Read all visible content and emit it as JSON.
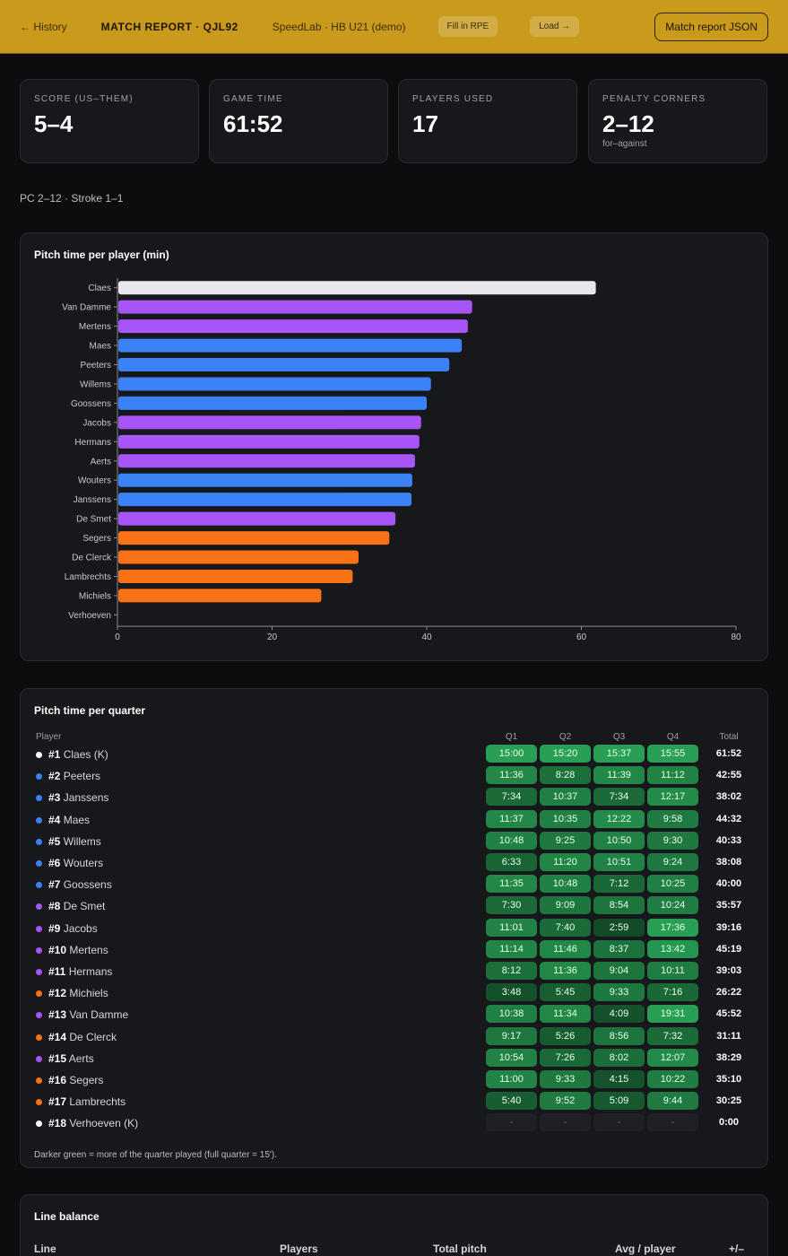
{
  "header": {
    "back_label": "← History",
    "title": "MATCH REPORT · QJL92",
    "team": "SpeedLab · HB U21 (demo)",
    "fill_rpe_label": "Fill in RPE",
    "load_label": "Load →",
    "json_label": "Match report JSON"
  },
  "stats": [
    {
      "label": "SCORE (US–THEM)",
      "value": "5–4",
      "sub": ""
    },
    {
      "label": "GAME TIME",
      "value": "61:52",
      "sub": ""
    },
    {
      "label": "PLAYERS USED",
      "value": "17",
      "sub": ""
    },
    {
      "label": "PENALTY CORNERS",
      "value": "2–12",
      "sub": "for–against"
    }
  ],
  "pc_line": "PC 2–12 · Stroke 1–1",
  "colors": {
    "keeper": "#e8e8ec",
    "midfield": "#a855f7",
    "defense": "#3b82f6",
    "attack": "#f97316"
  },
  "pitch_chart": {
    "title": "Pitch time per player (min)"
  },
  "chart_data": {
    "type": "bar",
    "orientation": "horizontal",
    "title": "Pitch time per player (min)",
    "categories": [
      "Claes",
      "Van Damme",
      "Mertens",
      "Maes",
      "Peeters",
      "Willems",
      "Goossens",
      "Jacobs",
      "Hermans",
      "Aerts",
      "Wouters",
      "Janssens",
      "De Smet",
      "Segers",
      "De Clerck",
      "Lambrechts",
      "Michiels",
      "Verhoeven"
    ],
    "values": [
      61.87,
      45.87,
      45.32,
      44.53,
      42.92,
      40.55,
      40.0,
      39.27,
      39.05,
      38.48,
      38.13,
      38.03,
      35.95,
      35.17,
      31.18,
      30.42,
      26.37,
      0
    ],
    "bar_colors": [
      "#e8e8ec",
      "#a855f7",
      "#a855f7",
      "#3b82f6",
      "#3b82f6",
      "#3b82f6",
      "#3b82f6",
      "#a855f7",
      "#a855f7",
      "#a855f7",
      "#3b82f6",
      "#3b82f6",
      "#a855f7",
      "#f97316",
      "#f97316",
      "#f97316",
      "#f97316",
      "#e8e8ec"
    ],
    "xlim": [
      0,
      80
    ],
    "xticks": [
      0,
      20,
      40,
      60,
      80
    ],
    "grid": false
  },
  "quarter_table": {
    "title": "Pitch time per quarter",
    "headers": {
      "player": "Player",
      "q1": "Q1",
      "q2": "Q2",
      "q3": "Q3",
      "q4": "Q4",
      "total": "Total"
    },
    "rows": [
      {
        "num": "#1",
        "name": "Claes (K)",
        "color": "#ffffff",
        "q": [
          "15:00",
          "15:20",
          "15:37",
          "15:55"
        ],
        "secs": [
          900,
          920,
          937,
          955
        ],
        "total": "61:52"
      },
      {
        "num": "#2",
        "name": "Peeters",
        "color": "#3b82f6",
        "q": [
          "11:36",
          "8:28",
          "11:39",
          "11:12"
        ],
        "secs": [
          696,
          508,
          699,
          672
        ],
        "total": "42:55"
      },
      {
        "num": "#3",
        "name": "Janssens",
        "color": "#3b82f6",
        "q": [
          "7:34",
          "10:37",
          "7:34",
          "12:17"
        ],
        "secs": [
          454,
          637,
          454,
          737
        ],
        "total": "38:02"
      },
      {
        "num": "#4",
        "name": "Maes",
        "color": "#3b82f6",
        "q": [
          "11:37",
          "10:35",
          "12:22",
          "9:58"
        ],
        "secs": [
          697,
          635,
          742,
          598
        ],
        "total": "44:32"
      },
      {
        "num": "#5",
        "name": "Willems",
        "color": "#3b82f6",
        "q": [
          "10:48",
          "9:25",
          "10:50",
          "9:30"
        ],
        "secs": [
          648,
          565,
          650,
          570
        ],
        "total": "40:33"
      },
      {
        "num": "#6",
        "name": "Wouters",
        "color": "#3b82f6",
        "q": [
          "6:33",
          "11:20",
          "10:51",
          "9:24"
        ],
        "secs": [
          393,
          680,
          651,
          564
        ],
        "total": "38:08"
      },
      {
        "num": "#7",
        "name": "Goossens",
        "color": "#3b82f6",
        "q": [
          "11:35",
          "10:48",
          "7:12",
          "10:25"
        ],
        "secs": [
          695,
          648,
          432,
          625
        ],
        "total": "40:00"
      },
      {
        "num": "#8",
        "name": "De Smet",
        "color": "#a855f7",
        "q": [
          "7:30",
          "9:09",
          "8:54",
          "10:24"
        ],
        "secs": [
          450,
          549,
          534,
          624
        ],
        "total": "35:57"
      },
      {
        "num": "#9",
        "name": "Jacobs",
        "color": "#a855f7",
        "q": [
          "11:01",
          "7:40",
          "2:59",
          "17:36"
        ],
        "secs": [
          661,
          460,
          179,
          1056
        ],
        "total": "39:16"
      },
      {
        "num": "#10",
        "name": "Mertens",
        "color": "#a855f7",
        "q": [
          "11:14",
          "11:46",
          "8:37",
          "13:42"
        ],
        "secs": [
          674,
          706,
          517,
          822
        ],
        "total": "45:19"
      },
      {
        "num": "#11",
        "name": "Hermans",
        "color": "#a855f7",
        "q": [
          "8:12",
          "11:36",
          "9:04",
          "10:11"
        ],
        "secs": [
          492,
          696,
          544,
          611
        ],
        "total": "39:03"
      },
      {
        "num": "#12",
        "name": "Michiels",
        "color": "#f97316",
        "q": [
          "3:48",
          "5:45",
          "9:33",
          "7:16"
        ],
        "secs": [
          228,
          345,
          573,
          436
        ],
        "total": "26:22"
      },
      {
        "num": "#13",
        "name": "Van Damme",
        "color": "#a855f7",
        "q": [
          "10:38",
          "11:34",
          "4:09",
          "19:31"
        ],
        "secs": [
          638,
          694,
          249,
          1171
        ],
        "total": "45:52"
      },
      {
        "num": "#14",
        "name": "De Clerck",
        "color": "#f97316",
        "q": [
          "9:17",
          "5:26",
          "8:56",
          "7:32"
        ],
        "secs": [
          557,
          326,
          536,
          452
        ],
        "total": "31:11"
      },
      {
        "num": "#15",
        "name": "Aerts",
        "color": "#a855f7",
        "q": [
          "10:54",
          "7:26",
          "8:02",
          "12:07"
        ],
        "secs": [
          654,
          446,
          482,
          727
        ],
        "total": "38:29"
      },
      {
        "num": "#16",
        "name": "Segers",
        "color": "#f97316",
        "q": [
          "11:00",
          "9:33",
          "4:15",
          "10:22"
        ],
        "secs": [
          660,
          573,
          255,
          622
        ],
        "total": "35:10"
      },
      {
        "num": "#17",
        "name": "Lambrechts",
        "color": "#f97316",
        "q": [
          "5:40",
          "9:52",
          "5:09",
          "9:44"
        ],
        "secs": [
          340,
          592,
          309,
          584
        ],
        "total": "30:25"
      },
      {
        "num": "#18",
        "name": "Verhoeven (K)",
        "color": "#ffffff",
        "q": [
          "-",
          "-",
          "-",
          "-"
        ],
        "secs": [
          0,
          0,
          0,
          0
        ],
        "total": "0:00"
      }
    ],
    "note": "Darker green = more of the quarter played (full quarter = 15')."
  },
  "line_balance": {
    "title": "Line balance",
    "headers": {
      "line": "Line",
      "players": "Players",
      "total_pitch": "Total pitch",
      "avg_player": "Avg / player",
      "plus_minus": "+/–"
    }
  }
}
